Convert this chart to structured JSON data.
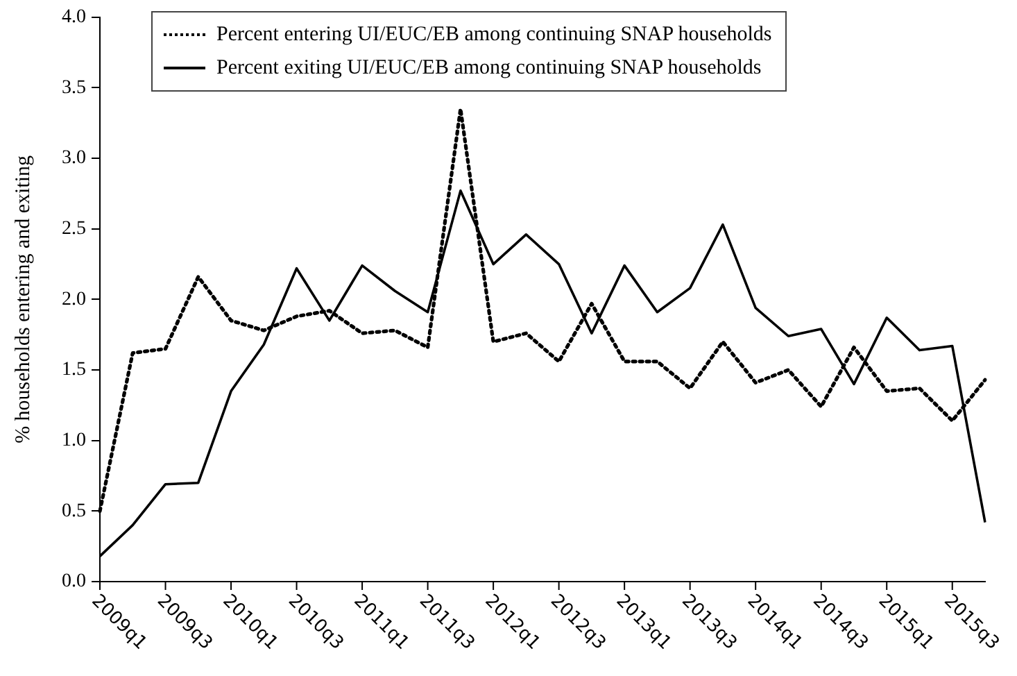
{
  "chart_data": {
    "type": "line",
    "ylabel": "% households entering and exiting",
    "categories": [
      "2009q1",
      null,
      "2009q3",
      null,
      "2010q1",
      null,
      "2010q3",
      null,
      "2011q1",
      null,
      "2011q3",
      null,
      "2012q1",
      null,
      "2012q3",
      null,
      "2013q1",
      null,
      "2013q3",
      null,
      "2014q1",
      null,
      "2014q3",
      null,
      "2015q1",
      null,
      "2015q3",
      null
    ],
    "series": [
      {
        "name": "Percent entering UI/EUC/EB among continuing SNAP households",
        "color": "#000000",
        "line_style": "dotted",
        "values": [
          0.5,
          1.62,
          1.65,
          2.16,
          1.85,
          1.78,
          1.88,
          1.92,
          1.76,
          1.78,
          1.66,
          3.35,
          1.7,
          1.76,
          1.56,
          1.97,
          1.56,
          1.56,
          1.37,
          1.7,
          1.41,
          1.5,
          1.24,
          1.66,
          1.35,
          1.37,
          1.14,
          1.43
        ]
      },
      {
        "name": "Percent exiting UI/EUC/EB among continuing SNAP households",
        "color": "#000000",
        "line_style": "solid",
        "values": [
          0.18,
          0.4,
          0.69,
          0.7,
          1.35,
          1.68,
          2.22,
          1.85,
          2.24,
          2.06,
          1.91,
          2.77,
          2.25,
          2.46,
          2.25,
          1.76,
          2.24,
          1.91,
          2.08,
          2.53,
          1.94,
          1.74,
          1.79,
          1.4,
          1.87,
          1.64,
          1.67,
          0.42
        ]
      }
    ],
    "ylim": [
      0,
      4
    ],
    "yticks": [
      {
        "value": 0,
        "label": "0.0"
      },
      0.5,
      {
        "value": 1,
        "label": "1.0"
      },
      1.5,
      {
        "value": 2,
        "label": "2.0"
      },
      2.5,
      {
        "value": 3,
        "label": "3.0"
      },
      3.5,
      {
        "value": 4,
        "label": "4.0"
      }
    ],
    "legend": "top",
    "grid": false,
    "marker": "none"
  }
}
